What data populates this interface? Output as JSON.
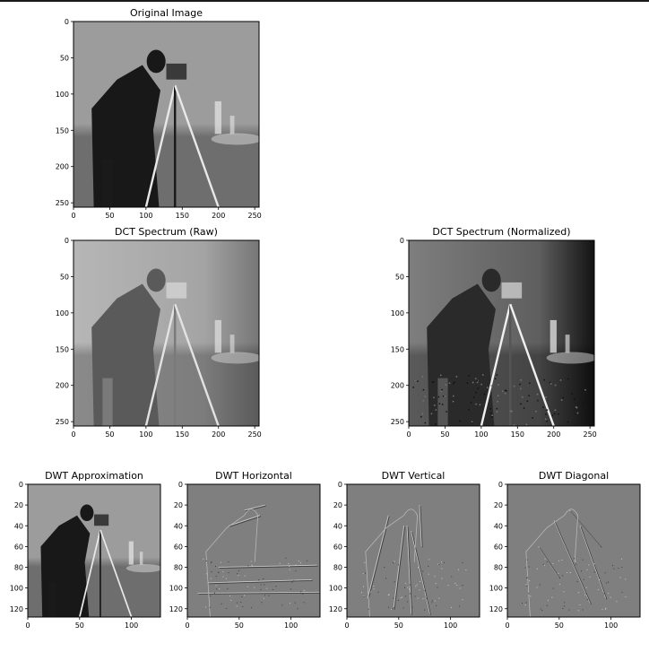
{
  "chart_data": [
    {
      "type": "heatmap",
      "title": "Original Image",
      "colormap": "gray",
      "xticks": [
        "0",
        "50",
        "100",
        "150",
        "200",
        "250"
      ],
      "yticks": [
        "0",
        "50",
        "100",
        "150",
        "200",
        "250"
      ],
      "xlim": [
        0,
        256
      ],
      "ylim": [
        0,
        256
      ]
    },
    {
      "type": "heatmap",
      "title": "DCT Spectrum (Raw)",
      "colormap": "gray",
      "xticks": [
        "0",
        "50",
        "100",
        "150",
        "200",
        "250"
      ],
      "yticks": [
        "0",
        "50",
        "100",
        "150",
        "200",
        "250"
      ],
      "xlim": [
        0,
        256
      ],
      "ylim": [
        0,
        256
      ]
    },
    {
      "type": "heatmap",
      "title": "DCT Spectrum (Normalized)",
      "colormap": "gray",
      "xticks": [
        "0",
        "50",
        "100",
        "150",
        "200",
        "250"
      ],
      "yticks": [
        "0",
        "50",
        "100",
        "150",
        "200",
        "250"
      ],
      "xlim": [
        0,
        256
      ],
      "ylim": [
        0,
        256
      ]
    },
    {
      "type": "heatmap",
      "title": "DWT Approximation",
      "colormap": "gray",
      "xticks": [
        "0",
        "50",
        "100"
      ],
      "yticks": [
        "0",
        "20",
        "40",
        "60",
        "80",
        "100",
        "120"
      ],
      "xlim": [
        0,
        128
      ],
      "ylim": [
        0,
        128
      ]
    },
    {
      "type": "heatmap",
      "title": "DWT Horizontal",
      "colormap": "gray",
      "xticks": [
        "0",
        "50",
        "100"
      ],
      "yticks": [
        "0",
        "20",
        "40",
        "60",
        "80",
        "100",
        "120"
      ],
      "xlim": [
        0,
        128
      ],
      "ylim": [
        0,
        128
      ]
    },
    {
      "type": "heatmap",
      "title": "DWT Vertical",
      "colormap": "gray",
      "xticks": [
        "0",
        "50",
        "100"
      ],
      "yticks": [
        "0",
        "20",
        "40",
        "60",
        "80",
        "100",
        "120"
      ],
      "xlim": [
        0,
        128
      ],
      "ylim": [
        0,
        128
      ]
    },
    {
      "type": "heatmap",
      "title": "DWT Diagonal",
      "colormap": "gray",
      "xticks": [
        "0",
        "50",
        "100"
      ],
      "yticks": [
        "0",
        "20",
        "40",
        "60",
        "80",
        "100",
        "120"
      ],
      "xlim": [
        0,
        128
      ],
      "ylim": [
        0,
        128
      ]
    }
  ]
}
